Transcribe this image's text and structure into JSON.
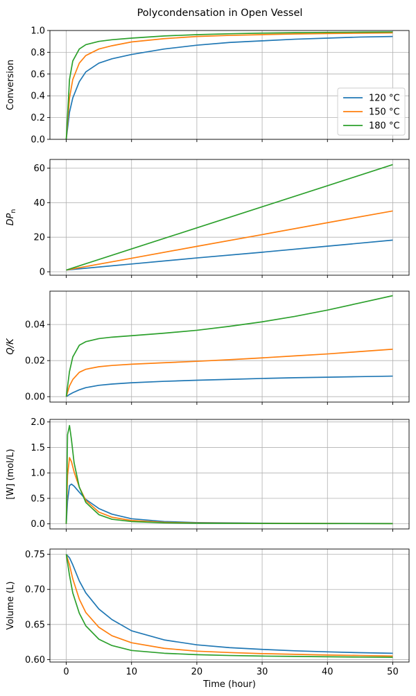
{
  "title": "Polycondensation in Open Vessel",
  "chart_data": {
    "type": "line",
    "title": "Polycondensation in Open Vessel",
    "xlabel": "Time (hour)",
    "xlim": [
      -2.5,
      52.5
    ],
    "xticks": [
      0,
      10,
      20,
      30,
      40,
      50
    ],
    "xtick_labels": [
      "0",
      "10",
      "20",
      "30",
      "40",
      "50"
    ],
    "series_names": [
      "120 °C",
      "150 °C",
      "180 °C"
    ],
    "colors": [
      "#1f77b4",
      "#ff7f0e",
      "#2ca02c"
    ],
    "legend": {
      "panel": 0,
      "location": "lower-right"
    },
    "panels": [
      {
        "ylabel": "Conversion",
        "ylim": [
          0,
          1.0
        ],
        "yticks": [
          0,
          0.2,
          0.4,
          0.6,
          0.8,
          1.0
        ],
        "ytick_labels": [
          "0.0",
          "0.2",
          "0.4",
          "0.6",
          "0.8",
          "1.0"
        ],
        "grid": true,
        "series": [
          {
            "name": "120 °C",
            "x": [
              0,
              0.5,
              1,
              2,
              3,
              5,
              7,
              10,
              15,
              20,
              25,
              30,
              35,
              40,
              45,
              50
            ],
            "y": [
              0,
              0.25,
              0.38,
              0.53,
              0.62,
              0.7,
              0.74,
              0.78,
              0.83,
              0.865,
              0.89,
              0.905,
              0.92,
              0.93,
              0.94,
              0.945
            ]
          },
          {
            "name": "150 °C",
            "x": [
              0,
              0.5,
              1,
              2,
              3,
              5,
              7,
              10,
              15,
              20,
              25,
              30,
              35,
              40,
              45,
              50
            ],
            "y": [
              0,
              0.38,
              0.55,
              0.7,
              0.77,
              0.83,
              0.86,
              0.895,
              0.925,
              0.945,
              0.955,
              0.962,
              0.968,
              0.972,
              0.975,
              0.978
            ]
          },
          {
            "name": "180 °C",
            "x": [
              0,
              0.5,
              1,
              2,
              3,
              5,
              7,
              10,
              15,
              20,
              25,
              30,
              35,
              40,
              45,
              50
            ],
            "y": [
              0,
              0.55,
              0.72,
              0.83,
              0.87,
              0.9,
              0.915,
              0.93,
              0.95,
              0.962,
              0.97,
              0.976,
              0.98,
              0.983,
              0.985,
              0.987
            ]
          }
        ]
      },
      {
        "ylabel": "DPn",
        "ylim": [
          -2,
          65
        ],
        "yticks": [
          0,
          20,
          40,
          60
        ],
        "ytick_labels": [
          "0",
          "20",
          "40",
          "60"
        ],
        "grid": true,
        "series": [
          {
            "name": "120 °C",
            "x": [
              0,
              10,
              20,
              30,
              40,
              50
            ],
            "y": [
              1,
              4.5,
              8,
              11.3,
              14.8,
              18.3
            ]
          },
          {
            "name": "150 °C",
            "x": [
              0,
              10,
              20,
              30,
              40,
              50
            ],
            "y": [
              1,
              7.8,
              14.7,
              21.5,
              28.4,
              35.2
            ]
          },
          {
            "name": "180 °C",
            "x": [
              0,
              10,
              20,
              30,
              40,
              50
            ],
            "y": [
              1,
              13.2,
              25.4,
              37.6,
              49.8,
              62
            ]
          }
        ]
      },
      {
        "ylabel": "Q/K",
        "ylim": [
          -0.003,
          0.0585
        ],
        "yticks": [
          0,
          0.02,
          0.04
        ],
        "ytick_labels": [
          "0.00",
          "0.02",
          "0.04"
        ],
        "grid": true,
        "series": [
          {
            "name": "120 °C",
            "x": [
              0,
              0.5,
              1,
              2,
              3,
              5,
              7,
              10,
              15,
              20,
              25,
              30,
              35,
              40,
              45,
              50
            ],
            "y": [
              0,
              0.0012,
              0.0022,
              0.0038,
              0.005,
              0.0063,
              0.007,
              0.0077,
              0.0085,
              0.0091,
              0.0096,
              0.0101,
              0.0105,
              0.0108,
              0.0111,
              0.0114
            ]
          },
          {
            "name": "150 °C",
            "x": [
              0,
              0.5,
              1,
              2,
              3,
              5,
              7,
              10,
              15,
              20,
              25,
              30,
              35,
              40,
              45,
              50
            ],
            "y": [
              0,
              0.006,
              0.0095,
              0.0135,
              0.0152,
              0.0166,
              0.0173,
              0.018,
              0.0188,
              0.0196,
              0.0205,
              0.0215,
              0.0226,
              0.0237,
              0.025,
              0.0263
            ]
          },
          {
            "name": "180 °C",
            "x": [
              0,
              0.5,
              1,
              2,
              3,
              5,
              7,
              10,
              15,
              20,
              25,
              30,
              35,
              40,
              45,
              50
            ],
            "y": [
              0,
              0.014,
              0.022,
              0.0285,
              0.0305,
              0.0322,
              0.033,
              0.0338,
              0.0352,
              0.0368,
              0.039,
              0.0415,
              0.0445,
              0.048,
              0.052,
              0.056
            ]
          }
        ]
      },
      {
        "ylabel": "[W] (mol/L)",
        "ylim": [
          -0.1,
          2.05
        ],
        "yticks": [
          0,
          0.5,
          1.0,
          1.5,
          2.0
        ],
        "ytick_labels": [
          "0.0",
          "0.5",
          "1.0",
          "1.5",
          "2.0"
        ],
        "grid": true,
        "series": [
          {
            "name": "120 °C",
            "x": [
              0,
              0.2,
              0.5,
              0.8,
              1.2,
              2,
              3,
              5,
              7,
              10,
              15,
              20,
              30,
              40,
              50
            ],
            "y": [
              0,
              0.45,
              0.75,
              0.78,
              0.74,
              0.62,
              0.48,
              0.3,
              0.19,
              0.1,
              0.045,
              0.025,
              0.012,
              0.008,
              0.006
            ]
          },
          {
            "name": "150 °C",
            "x": [
              0,
              0.2,
              0.5,
              0.8,
              1.2,
              2,
              3,
              5,
              7,
              10,
              15,
              20,
              30,
              40,
              50
            ],
            "y": [
              0,
              0.95,
              1.3,
              1.22,
              1.02,
              0.72,
              0.46,
              0.23,
              0.13,
              0.065,
              0.03,
              0.018,
              0.01,
              0.007,
              0.005
            ]
          },
          {
            "name": "180 °C",
            "x": [
              0,
              0.2,
              0.5,
              0.8,
              1.2,
              2,
              3,
              5,
              7,
              10,
              15,
              20,
              30,
              40,
              50
            ],
            "y": [
              0,
              1.75,
              1.93,
              1.65,
              1.2,
              0.72,
              0.42,
              0.18,
              0.09,
              0.045,
              0.02,
              0.012,
              0.007,
              0.005,
              0.004
            ]
          }
        ]
      },
      {
        "ylabel": "Volume (L)",
        "ylim": [
          0.5965,
          0.7575
        ],
        "yticks": [
          0.6,
          0.65,
          0.7,
          0.75
        ],
        "ytick_labels": [
          "0.60",
          "0.65",
          "0.70",
          "0.75"
        ],
        "grid": true,
        "series": [
          {
            "name": "120 °C",
            "x": [
              0,
              0.5,
              1,
              2,
              3,
              5,
              7,
              10,
              15,
              20,
              25,
              30,
              35,
              40,
              45,
              50
            ],
            "y": [
              0.75,
              0.745,
              0.735,
              0.712,
              0.695,
              0.672,
              0.657,
              0.641,
              0.628,
              0.621,
              0.617,
              0.6145,
              0.6125,
              0.611,
              0.6098,
              0.609
            ]
          },
          {
            "name": "150 °C",
            "x": [
              0,
              0.5,
              1,
              2,
              3,
              5,
              7,
              10,
              15,
              20,
              25,
              30,
              35,
              40,
              45,
              50
            ],
            "y": [
              0.75,
              0.735,
              0.715,
              0.686,
              0.667,
              0.646,
              0.634,
              0.624,
              0.616,
              0.612,
              0.61,
              0.6085,
              0.6075,
              0.6065,
              0.6058,
              0.605
            ]
          },
          {
            "name": "180 °C",
            "x": [
              0,
              0.5,
              1,
              2,
              3,
              5,
              7,
              10,
              15,
              20,
              25,
              30,
              35,
              40,
              45,
              50
            ],
            "y": [
              0.75,
              0.72,
              0.695,
              0.666,
              0.648,
              0.629,
              0.62,
              0.613,
              0.609,
              0.607,
              0.6058,
              0.605,
              0.6045,
              0.604,
              0.6036,
              0.6033
            ]
          }
        ]
      }
    ]
  }
}
